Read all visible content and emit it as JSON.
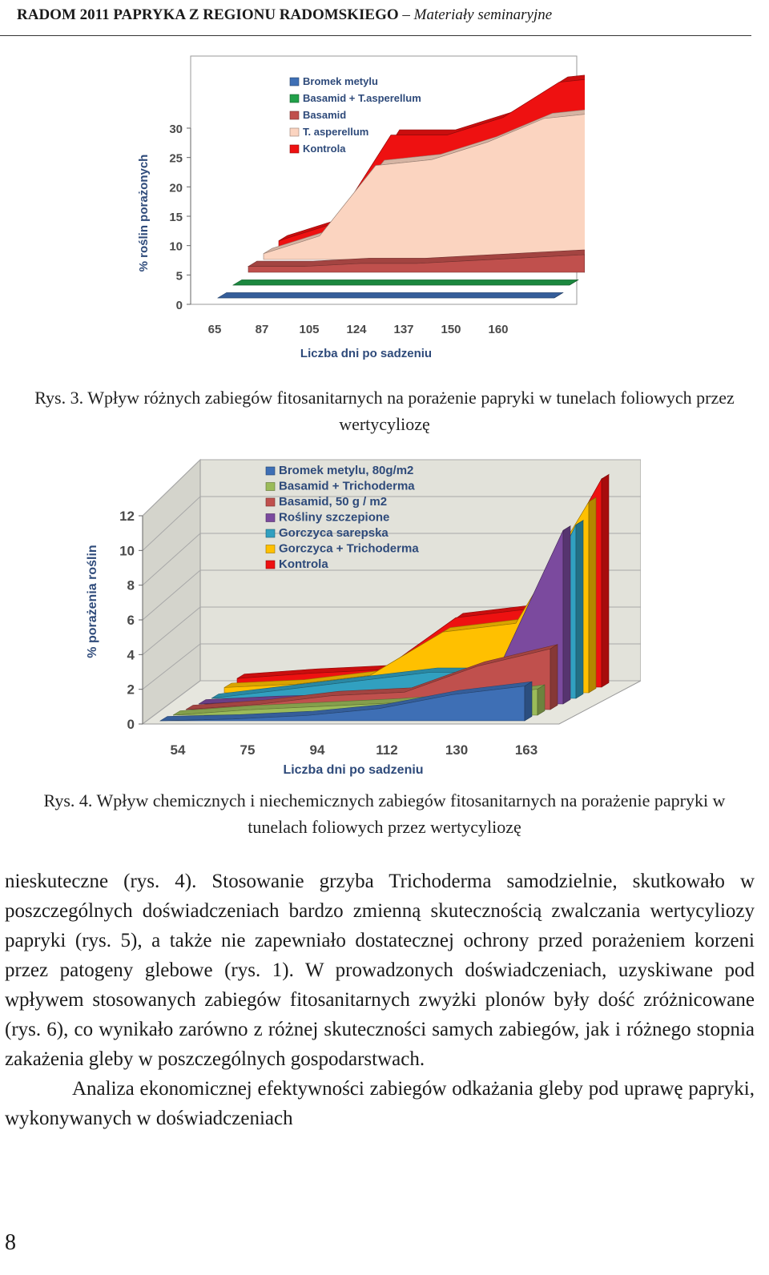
{
  "header": {
    "bold": "RADOM 2011 PAPRYKA Z REGIONU RADOMSKIEGO",
    "dash": " – ",
    "italic": "Materiały seminaryjne"
  },
  "figure3": {
    "caption": "Rys. 3. Wpływ różnych zabiegów fitosanitarnych na porażenie papryki w tunelach foliowych przez wertycyliozę"
  },
  "figure4": {
    "caption": "Rys. 4. Wpływ chemicznych i niechemicznych zabiegów fitosanitarnych na porażenie papryki w tunelach foliowych przez wertycyliozę"
  },
  "body": {
    "paragraph1": "nieskuteczne (rys. 4). Stosowanie grzyba Trichoderma samodzielnie, skutkowało w poszczególnych doświadczeniach bardzo zmienną skutecznością zwalczania wertycyliozy papryki (rys. 5), a także nie zapewniało dostatecznej ochrony przed porażeniem korzeni przez patogeny glebowe (rys. 1). W prowadzonych doświadczeniach, uzyskiwane pod wpływem stosowanych zabiegów fitosanitarnych zwyżki plonów były dość zróżnicowane (rys. 6), co wynikało zarówno z różnej skuteczności samych zabiegów, jak i różnego stopnia zakażenia gleby w poszczególnych gospodarstwach.",
    "paragraph2": "Analiza ekonomicznej efektywności zabiegów odkażania gleby pod uprawę papryki, wykonywanych w doświadczeniach"
  },
  "page_number": "8",
  "chart_data": [
    {
      "type": "area",
      "title": "",
      "xlabel": "Liczba dni po sadzeniu",
      "ylabel": "% roślin porażonych",
      "x": [
        "65",
        "87",
        "105",
        "124",
        "137",
        "150",
        "160"
      ],
      "yticks": [
        "0",
        "5",
        "10",
        "15",
        "20",
        "25",
        "30"
      ],
      "ylim": [
        0,
        30
      ],
      "grid": false,
      "legend_position": "top-left",
      "series": [
        {
          "name": "Bromek metylu",
          "color": "#3e6fb5",
          "values": [
            0,
            0,
            0,
            0,
            0,
            0,
            0
          ]
        },
        {
          "name": "Basamid + T.asperellum",
          "color": "#21a04a",
          "values": [
            0,
            0,
            0,
            0,
            0,
            0,
            0
          ]
        },
        {
          "name": "Basamid",
          "color": "#c0504d",
          "values": [
            1,
            1,
            1.5,
            1.5,
            2,
            2.5,
            3
          ]
        },
        {
          "name": "T. asperellum",
          "color": "#fbd4c0",
          "values": [
            1,
            4,
            16,
            17,
            20,
            24,
            25
          ]
        },
        {
          "name": "Kontrola",
          "color": "#ee1111",
          "values": [
            1,
            4,
            19,
            19,
            22,
            28,
            29
          ]
        }
      ]
    },
    {
      "type": "area",
      "title": "",
      "xlabel": "Liczba dni po sadzeniu",
      "ylabel": "% porażenia roślin",
      "x": [
        "54",
        "75",
        "94",
        "112",
        "130",
        "163"
      ],
      "yticks": [
        "0",
        "2",
        "4",
        "6",
        "8",
        "10",
        "12"
      ],
      "ylim": [
        0,
        12
      ],
      "grid": true,
      "legend_position": "top-left",
      "series": [
        {
          "name": "Bromek metylu, 80g/m2",
          "color": "#3e6fb5",
          "values": [
            0,
            0.1,
            0.3,
            0.7,
            1.5,
            2
          ]
        },
        {
          "name": "Basamid + Trichoderma",
          "color": "#9bbb59",
          "values": [
            0,
            0.3,
            0.5,
            0.7,
            1,
            1.5
          ]
        },
        {
          "name": "Basamid, 50 g / m2",
          "color": "#c0504d",
          "values": [
            0,
            0.3,
            0.8,
            1,
            2.5,
            3.5
          ]
        },
        {
          "name": "Rośliny szczepione",
          "color": "#7b4a9e",
          "values": [
            0,
            0.2,
            0.3,
            0.5,
            1,
            10
          ]
        },
        {
          "name": "Gorczyca sarepska",
          "color": "#31a0c0",
          "values": [
            0,
            0.5,
            1,
            1.5,
            1.5,
            10
          ]
        },
        {
          "name": "Gorczyca + Trichoderma",
          "color": "#ffc000",
          "values": [
            0.3,
            0.5,
            1,
            3.5,
            4,
            11
          ]
        },
        {
          "name": "Kontrola",
          "color": "#ee1111",
          "values": [
            0.5,
            0.8,
            1,
            4,
            4.5,
            12
          ]
        }
      ]
    }
  ]
}
